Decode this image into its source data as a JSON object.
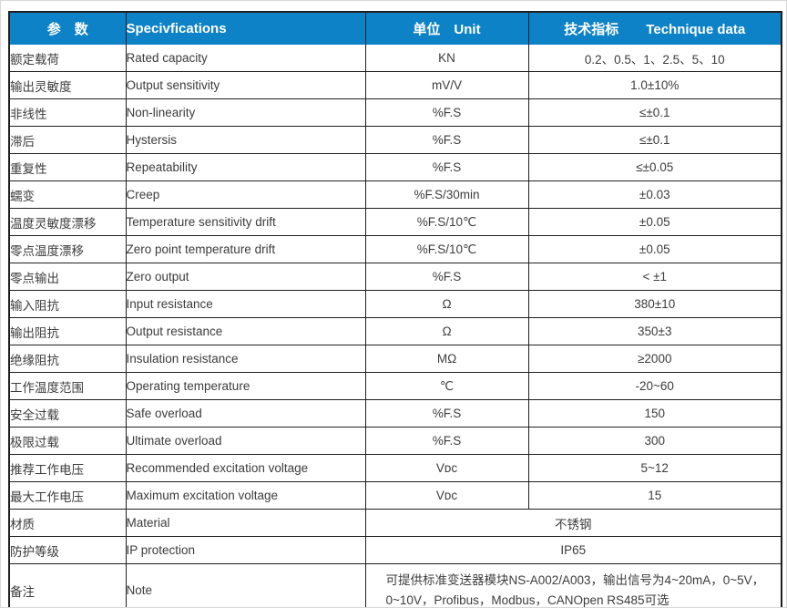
{
  "colors": {
    "header_bg": "#0d82c6",
    "header_text": "#ffffff",
    "grid_border": "#1f1f1f",
    "body_text": "#3c3c3c",
    "page_frame": "#d8d8d8"
  },
  "table": {
    "header": {
      "param": "参　数",
      "spec": "Specivfications",
      "unit": "单位　Unit",
      "tech": "技术指标　　Technique data"
    },
    "rows": [
      {
        "cn": "额定载荷",
        "en": "Rated capacity",
        "unit": "KN",
        "value": "0.2、0.5、1、2.5、5、10",
        "merged": false
      },
      {
        "cn": "输出灵敏度",
        "en": "Output sensitivity",
        "unit": "mV/V",
        "value": "1.0±10%",
        "merged": false
      },
      {
        "cn": "非线性",
        "en": "Non-linearity",
        "unit": "%F.S",
        "value": "≤±0.1",
        "merged": false
      },
      {
        "cn": "滞后",
        "en": "Hystersis",
        "unit": "%F.S",
        "value": "≤±0.1",
        "merged": false
      },
      {
        "cn": "重复性",
        "en": "Repeatability",
        "unit": "%F.S",
        "value": "≤±0.05",
        "merged": false
      },
      {
        "cn": "蠕变",
        "en": "Creep",
        "unit": "%F.S/30min",
        "value": "±0.03",
        "merged": false
      },
      {
        "cn": "温度灵敏度漂移",
        "en": "Temperature sensitivity drift",
        "unit": "%F.S/10℃",
        "value": "±0.05",
        "merged": false
      },
      {
        "cn": "零点温度漂移",
        "en": "Zero point temperature drift",
        "unit": "%F.S/10℃",
        "value": "±0.05",
        "merged": false
      },
      {
        "cn": "零点输出",
        "en": "Zero output",
        "unit": "%F.S",
        "value": "< ±1",
        "merged": false
      },
      {
        "cn": "输入阻抗",
        "en": "Input resistance",
        "unit": "Ω",
        "value": "380±10",
        "merged": false
      },
      {
        "cn": "输出阻抗",
        "en": "Output resistance",
        "unit": "Ω",
        "value": "350±3",
        "merged": false
      },
      {
        "cn": "绝缘阻抗",
        "en": "Insulation resistance",
        "unit": "MΩ",
        "value": "≥2000",
        "merged": false
      },
      {
        "cn": "工作温度范围",
        "en": "Operating temperature",
        "unit": "℃",
        "value": "-20~60",
        "merged": false
      },
      {
        "cn": "安全过载",
        "en": "Safe overload",
        "unit": "%F.S",
        "value": "150",
        "merged": false
      },
      {
        "cn": "极限过载",
        "en": "Ultimate overload",
        "unit": "%F.S",
        "value": "300",
        "merged": false
      },
      {
        "cn": "推荐工作电压",
        "en": "Recommended excitation voltage",
        "unit": "Vᴅᴄ",
        "value": "5~12",
        "merged": false
      },
      {
        "cn": "最大工作电压",
        "en": "Maximum excitation voltage",
        "unit": "Vᴅᴄ",
        "value": "15",
        "merged": false
      },
      {
        "cn": "材质",
        "en": "Material",
        "unit": "",
        "value": "不锈钢",
        "merged": true
      },
      {
        "cn": "防护等级",
        "en": "IP protection",
        "unit": "",
        "value": "IP65",
        "merged": true
      },
      {
        "cn": "备注",
        "en": "Note",
        "unit": "",
        "value": "可提供标准变送器模块NS-A002/A003，输出信号为4~20mA，0~5V，0~10V，Profibus，Modbus，CANOpen  RS485可选",
        "merged": true
      }
    ]
  }
}
